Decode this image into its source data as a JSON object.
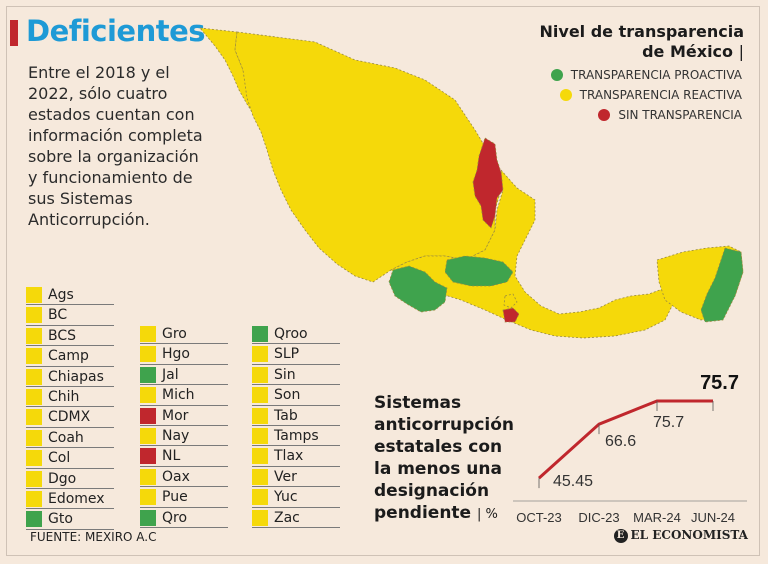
{
  "header": {
    "title": "Deficientes",
    "intro": "Entre el 2018 y el 2022, sólo cuatro estados cuentan con información completa sobre la organización y funcionamiento de sus Sistemas Anticorrupción."
  },
  "legend": {
    "title_line1": "Nivel de transparencia",
    "title_line2": "de México",
    "separator": "|",
    "items": [
      {
        "label": "TRANSPARENCIA PROACTIVA",
        "color": "#3fa34d"
      },
      {
        "label": "TRANSPARENCIA REACTIVA",
        "color": "#f5d90a"
      },
      {
        "label": "SIN TRANSPARENCIA",
        "color": "#c0272d"
      }
    ]
  },
  "colors": {
    "proactiva": "#3fa34d",
    "reactiva": "#f5d90a",
    "sin": "#c0272d"
  },
  "states": [
    [
      {
        "name": "Ags",
        "level": "reactiva"
      },
      {
        "name": "BC",
        "level": "reactiva"
      },
      {
        "name": "BCS",
        "level": "reactiva"
      },
      {
        "name": "Camp",
        "level": "reactiva"
      },
      {
        "name": "Chiapas",
        "level": "reactiva"
      },
      {
        "name": "Chih",
        "level": "reactiva"
      },
      {
        "name": "CDMX",
        "level": "reactiva"
      },
      {
        "name": "Coah",
        "level": "reactiva"
      },
      {
        "name": "Col",
        "level": "reactiva"
      },
      {
        "name": "Dgo",
        "level": "reactiva"
      },
      {
        "name": "Edomex",
        "level": "reactiva"
      },
      {
        "name": "Gto",
        "level": "proactiva"
      }
    ],
    [
      {
        "name": "Gro",
        "level": "reactiva"
      },
      {
        "name": "Hgo",
        "level": "reactiva"
      },
      {
        "name": "Jal",
        "level": "proactiva"
      },
      {
        "name": "Mich",
        "level": "reactiva"
      },
      {
        "name": "Mor",
        "level": "sin"
      },
      {
        "name": "Nay",
        "level": "reactiva"
      },
      {
        "name": "NL",
        "level": "sin"
      },
      {
        "name": "Oax",
        "level": "reactiva"
      },
      {
        "name": "Pue",
        "level": "reactiva"
      },
      {
        "name": "Qro",
        "level": "proactiva"
      }
    ],
    [
      {
        "name": "Qroo",
        "level": "proactiva"
      },
      {
        "name": "SLP",
        "level": "reactiva"
      },
      {
        "name": "Sin",
        "level": "reactiva"
      },
      {
        "name": "Son",
        "level": "reactiva"
      },
      {
        "name": "Tab",
        "level": "reactiva"
      },
      {
        "name": "Tamps",
        "level": "reactiva"
      },
      {
        "name": "Tlax",
        "level": "reactiva"
      },
      {
        "name": "Ver",
        "level": "reactiva"
      },
      {
        "name": "Yuc",
        "level": "reactiva"
      },
      {
        "name": "Zac",
        "level": "reactiva"
      }
    ]
  ],
  "chart_title": {
    "line1": "Sistemas",
    "line2": "anticorrupción",
    "line3": "estatales con",
    "line4": "la menos una",
    "line5": "designación",
    "line6": "pendiente",
    "unit": "| %"
  },
  "chart_data": {
    "type": "line",
    "title": "Sistemas anticorrupción estatales con la menos una designación pendiente",
    "ylabel": "%",
    "categories": [
      "OCT-23",
      "DIC-23",
      "MAR-24",
      "JUN-24"
    ],
    "values": [
      45.45,
      66.6,
      75.7,
      75.7
    ],
    "data_labels": [
      "45.45",
      "66.6",
      "75.7",
      "75.7"
    ],
    "highlight_label": "75.7",
    "line_color": "#c0272d"
  },
  "footer": {
    "source": "FUENTE: MEXIRO A.C",
    "brand": "EL ECONOMISTA",
    "brand_mark": "E"
  }
}
